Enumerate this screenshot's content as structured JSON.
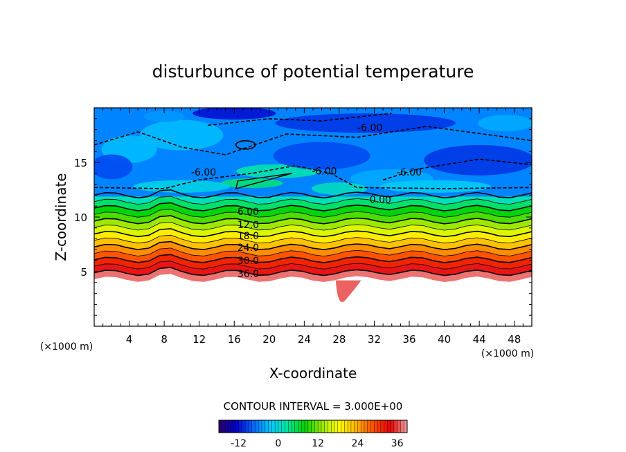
{
  "chart_data": {
    "type": "heatmap",
    "title": "disturbunce of potential temperature",
    "xlabel": "X-coordinate",
    "ylabel": "Z-coordinate",
    "x_unit": "(×1000 m)",
    "xlim": [
      0,
      50
    ],
    "ylim": [
      0,
      20
    ],
    "x_ticks": [
      4,
      8,
      12,
      16,
      20,
      24,
      28,
      32,
      36,
      40,
      44,
      48
    ],
    "y_ticks": [
      5,
      10,
      15
    ],
    "contour_interval_text": "CONTOUR INTERVAL = 3.000E+00",
    "contour_interval": 3.0,
    "colorbar": {
      "min": -18,
      "max": 39,
      "ticks": [
        -12,
        0,
        12,
        24,
        36
      ],
      "colors": [
        "#2a006a",
        "#0000c8",
        "#0064ff",
        "#00c8ff",
        "#00e6a0",
        "#00d200",
        "#96e600",
        "#ffff00",
        "#ffb400",
        "#ff5000",
        "#e60000",
        "#f0a0a0"
      ]
    },
    "contour_labels": [
      {
        "text": "-6.00",
        "x": 31.5,
        "z": 18.2
      },
      {
        "text": "-6.00",
        "x": 12.5,
        "z": 14.1
      },
      {
        "text": "-6.00",
        "x": 26.3,
        "z": 14.2
      },
      {
        "text": "-6.00",
        "x": 36.0,
        "z": 14.1
      },
      {
        "text": "0.00",
        "x": 32.7,
        "z": 11.6
      },
      {
        "text": "6.00",
        "x": 17.6,
        "z": 10.5
      },
      {
        "text": "12.0",
        "x": 17.6,
        "z": 9.3
      },
      {
        "text": "18.0",
        "x": 17.6,
        "z": 8.3
      },
      {
        "text": "24.0",
        "x": 17.6,
        "z": 7.2
      },
      {
        "text": "30.0",
        "x": 17.6,
        "z": 6.0
      },
      {
        "text": "36.0",
        "x": 17.6,
        "z": 4.8
      }
    ]
  }
}
